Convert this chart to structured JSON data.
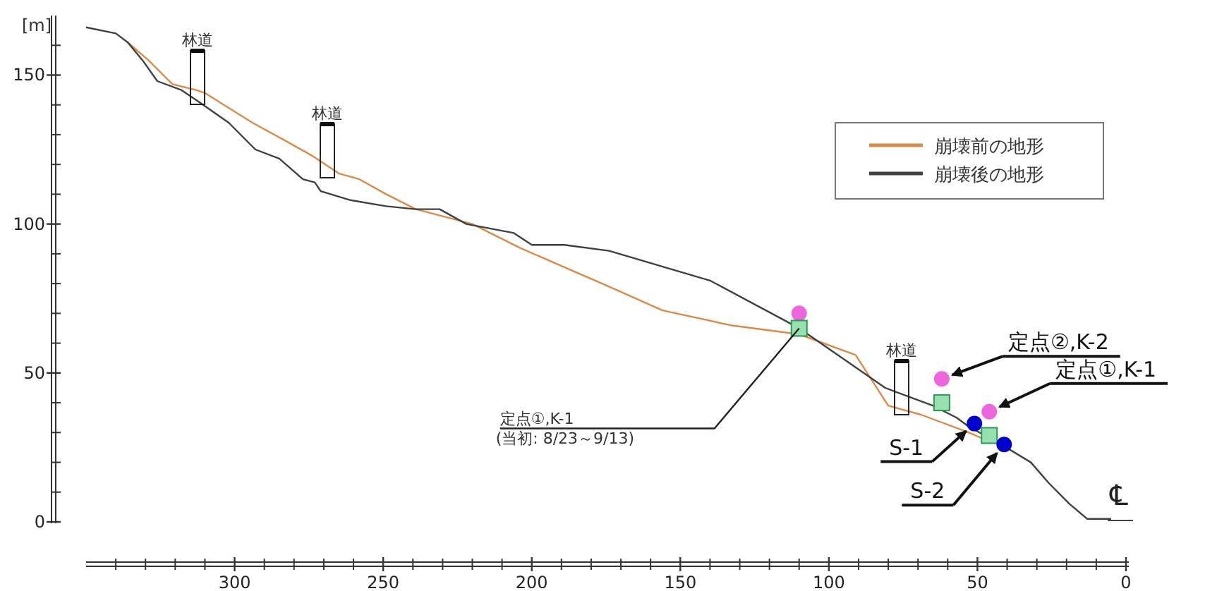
{
  "chart_data": {
    "type": "line",
    "ylabel": "[m]",
    "xlim": [
      350,
      0
    ],
    "ylim": [
      0,
      170
    ],
    "xticks": [
      0,
      50,
      100,
      150,
      200,
      250,
      300
    ],
    "yticks": [
      0,
      50,
      100,
      150
    ],
    "legend": "top right",
    "series": [
      {
        "name": "崩壊前の地形",
        "color": "#d98c4a",
        "x": [
          336,
          329,
          321,
          313,
          310,
          302,
          294,
          283,
          274,
          265,
          258,
          249,
          239,
          220,
          204,
          174,
          156,
          133,
          110,
          91,
          80,
          69,
          53,
          46
        ],
        "values": [
          161,
          155,
          147,
          145,
          144,
          139,
          134,
          128,
          123,
          117,
          115,
          110,
          105,
          100,
          92,
          79,
          71,
          66,
          63,
          56,
          39,
          36,
          30,
          27
        ]
      },
      {
        "name": "崩壊後の地形",
        "color": "#404040",
        "x": [
          350,
          340,
          336,
          331,
          326,
          318,
          312,
          302,
          293,
          285,
          277,
          273,
          271,
          261,
          249,
          239,
          231,
          222,
          206,
          200,
          189,
          174,
          140,
          110,
          81,
          65,
          57,
          53,
          42,
          32,
          26,
          19,
          13,
          5
        ],
        "values": [
          166,
          164,
          161,
          155,
          148,
          145,
          141,
          134,
          125,
          122,
          115,
          114,
          111,
          108,
          106,
          105,
          105,
          100,
          97,
          93,
          93,
          91,
          81,
          65,
          45,
          39,
          35,
          32,
          26,
          20,
          13,
          6,
          1,
          1
        ]
      },
      {
        "type": "scatter",
        "marker": "circle",
        "color": "#ee66dd",
        "x": [
          110,
          62,
          46
        ],
        "values": [
          70,
          48,
          37
        ]
      },
      {
        "type": "scatter",
        "marker": "square",
        "color": "#99e0b0",
        "x": [
          110,
          62,
          46
        ],
        "values": [
          65,
          40,
          29
        ]
      },
      {
        "type": "scatter",
        "marker": "circle",
        "color": "#0000cc",
        "x": [
          51,
          41
        ],
        "values": [
          33,
          26
        ]
      }
    ],
    "annotations": [
      {
        "text": "定点①,K-1",
        "x": 110,
        "y": 65
      },
      "(当初: 8/23～9/13)",
      {
        "text": "定点②,K-2",
        "x": 62,
        "y": 48
      },
      {
        "text": "定点①,K-1",
        "x": 46,
        "y": 37
      },
      {
        "text": "S-1",
        "x": 51,
        "y": 33
      },
      {
        "text": "S-2",
        "x": 41,
        "y": 26
      },
      "林道",
      "林道",
      "林道",
      "℄"
    ]
  }
}
